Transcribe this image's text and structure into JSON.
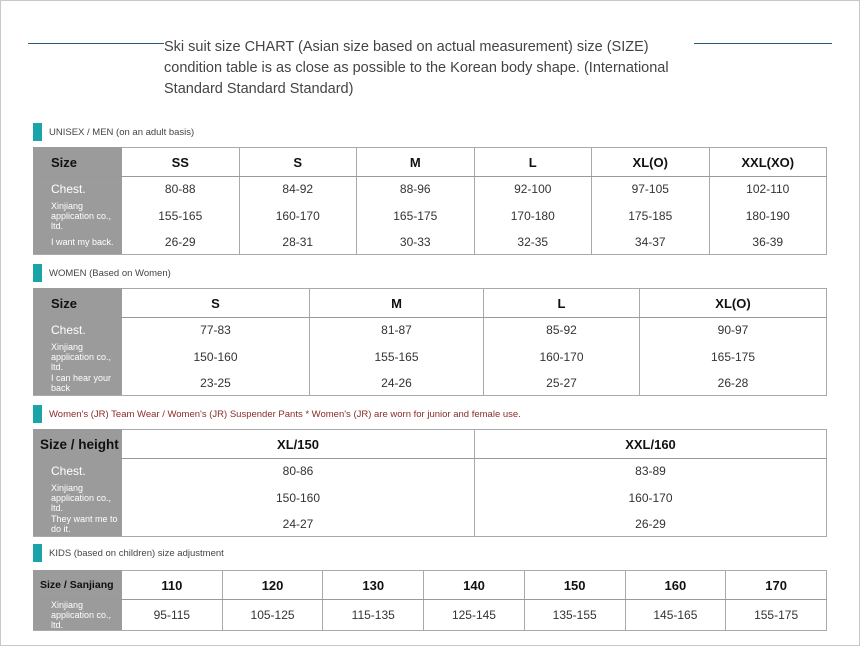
{
  "intro": "Ski suit size CHART (Asian size based on actual measurement) size (SIZE) condition table is as close as possible to the Korean body shape. (International Standard Standard Standard)",
  "sections": [
    {
      "title": "UNISEX / MEN (on an adult basis)",
      "size_label": "Size",
      "row_labels": [
        "Chest.",
        "Xinjiang application co., ltd.",
        "I want my back."
      ],
      "sizes": [
        "SS",
        "S",
        "M",
        "L",
        "XL(O)",
        "XXL(XO)"
      ],
      "rows": [
        [
          "80-88",
          "84-92",
          "88-96",
          "92-100",
          "97-105",
          "102-110"
        ],
        [
          "155-165",
          "160-170",
          "165-175",
          "170-180",
          "175-185",
          "180-190"
        ],
        [
          "26-29",
          "28-31",
          "30-33",
          "32-35",
          "34-37",
          "36-39"
        ]
      ]
    },
    {
      "title": "WOMEN (Based on Women)",
      "size_label": "Size",
      "row_labels": [
        "Chest.",
        "Xinjiang application co., ltd.",
        "I can hear your back"
      ],
      "sizes": [
        "S",
        "M",
        "L",
        "XL(O)"
      ],
      "rows": [
        [
          "77-83",
          "81-87",
          "85-92",
          "90-97"
        ],
        [
          "150-160",
          "155-165",
          "160-170",
          "165-175"
        ],
        [
          "23-25",
          "24-26",
          "25-27",
          "26-28"
        ]
      ]
    },
    {
      "title": "Women's (JR) Team Wear / Women's (JR) Suspender Pants * Women's (JR) are worn for junior and female use.",
      "size_label": "Size / height",
      "row_labels": [
        "Chest.",
        "Xinjiang application co., ltd.",
        "They want me to do it."
      ],
      "sizes": [
        "XL/150",
        "XXL/160"
      ],
      "rows": [
        [
          "80-86",
          "83-89"
        ],
        [
          "150-160",
          "160-170"
        ],
        [
          "24-27",
          "26-29"
        ]
      ]
    },
    {
      "title": "KIDS (based on children) size adjustment",
      "size_label": "Size / Sanjiang",
      "row_labels": [
        "Xinjiang application co., ltd."
      ],
      "sizes": [
        "110",
        "120",
        "130",
        "140",
        "150",
        "160",
        "170"
      ],
      "rows": [
        [
          "95-115",
          "105-125",
          "115-135",
          "125-145",
          "135-155",
          "145-165",
          "155-175"
        ]
      ]
    }
  ],
  "colors": {
    "accent": "#1aa3a8",
    "label_bg": "#9b9b9b",
    "rule": "#2a5a7a",
    "red_title": "#8a2b2b"
  }
}
